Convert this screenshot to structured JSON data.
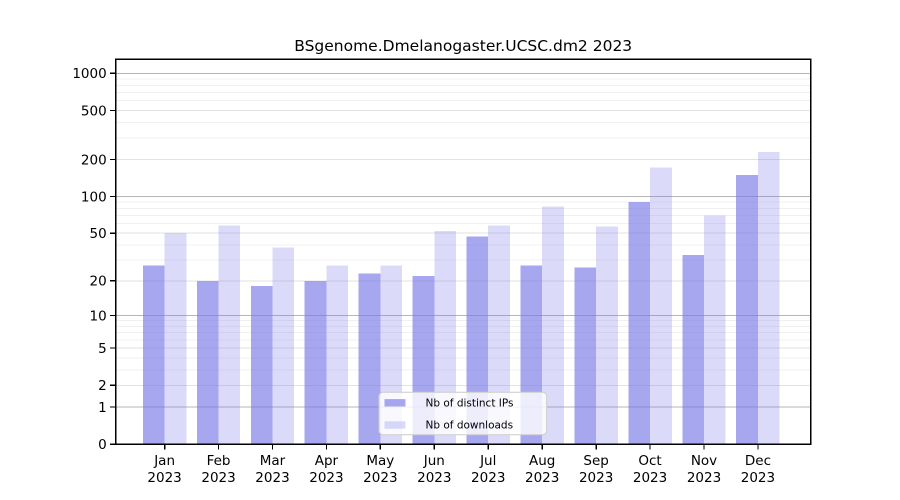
{
  "figure": {
    "background": "#ffffff"
  },
  "chart_data": {
    "type": "bar",
    "title": "BSgenome.Dmelanogaster.UCSC.dm2 2023",
    "y_scale": "log1p",
    "xlabel": "",
    "ylabel": "",
    "categories": [
      "Jan",
      "Feb",
      "Mar",
      "Apr",
      "May",
      "Jun",
      "Jul",
      "Aug",
      "Sep",
      "Oct",
      "Nov",
      "Dec"
    ],
    "year_label": "2023",
    "series": [
      {
        "name": "Nb of distinct IPs",
        "color": "#a7a7f0",
        "rgba": "rgba(122,122,232,0.66)",
        "values": [
          27,
          20,
          18,
          20,
          23,
          22,
          47,
          27,
          26,
          90,
          33,
          150
        ]
      },
      {
        "name": "Nb of downloads",
        "color": "#dbdbf9",
        "rgba": "rgba(122,122,232,0.27)",
        "values": [
          50,
          58,
          38,
          27,
          27,
          52,
          58,
          83,
          57,
          172,
          70,
          230
        ]
      }
    ],
    "y_ticks": [
      0,
      1,
      2,
      5,
      10,
      20,
      50,
      100,
      200,
      500,
      1000
    ],
    "ylim": [
      0,
      1300
    ],
    "grid": {
      "on": true,
      "decade_lines": [
        1,
        10,
        100,
        1000
      ],
      "mid_lines": [
        2,
        5,
        20,
        50,
        200,
        500
      ],
      "minor_lines": [
        3,
        4,
        6,
        7,
        8,
        9,
        30,
        40,
        60,
        70,
        80,
        90,
        300,
        400,
        600,
        700,
        800,
        900
      ]
    },
    "legend": {
      "position": "inside-bottom-center"
    },
    "colors": {
      "grid_decade": "#b6b6b6",
      "grid_mid": "#e2e2e2",
      "grid_minor": "#f0f0f0",
      "axis": "#000000",
      "legend_border": "#cccccc",
      "legend_bg": "rgba(255,255,255,0.8)"
    }
  }
}
